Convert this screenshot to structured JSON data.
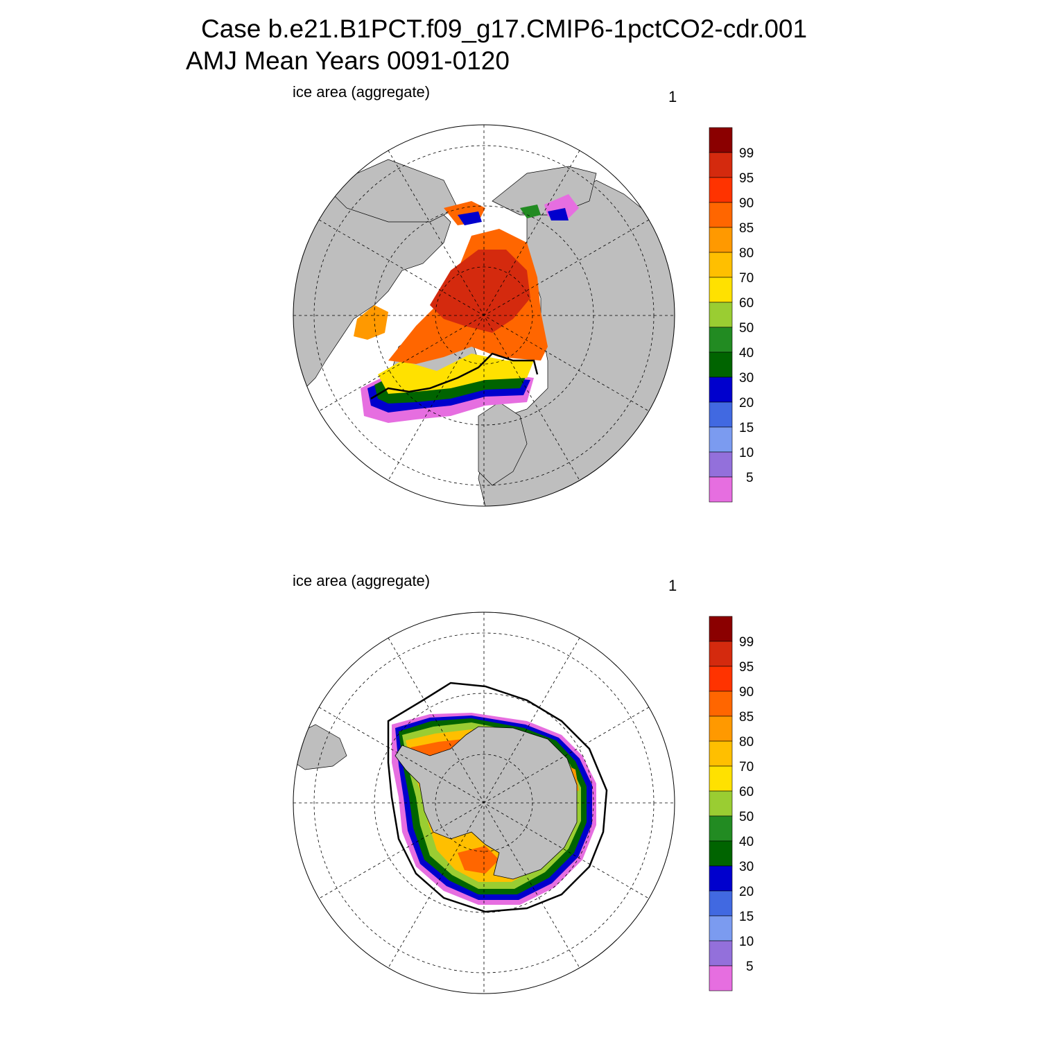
{
  "title": {
    "line1": "Case b.e21.B1PCT.f09_g17.CMIP6-1pctCO2-cdr.001",
    "line2": "AMJ Mean   Years 0091-0120"
  },
  "panels": [
    {
      "id": "north",
      "variable_label": "ice area  (aggregate)",
      "panel_number": "1"
    },
    {
      "id": "south",
      "variable_label": "ice area  (aggregate)",
      "panel_number": "1"
    }
  ],
  "colorbar": {
    "labels": [
      "99",
      "95",
      "90",
      "85",
      "80",
      "70",
      "60",
      "50",
      "40",
      "30",
      "20",
      "15",
      "10",
      "5"
    ],
    "colors": [
      "#8b0000",
      "#d42a0e",
      "#ff3300",
      "#ff6600",
      "#ff9900",
      "#ffbf00",
      "#ffe100",
      "#9acd32",
      "#228b22",
      "#006400",
      "#0000cd",
      "#4169e1",
      "#7b9bf0",
      "#9370db",
      "#e66ee0"
    ]
  },
  "map_colors": {
    "land": "#bebebe",
    "ocean": "#ffffff"
  }
}
